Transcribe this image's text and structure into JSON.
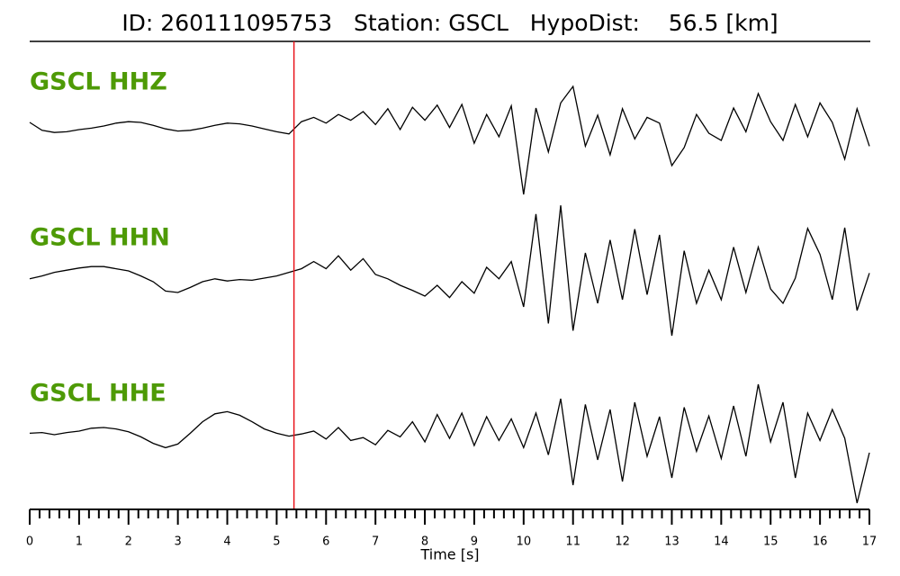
{
  "chart_data": {
    "type": "seismogram",
    "title": "ID: 260111095753   Station: GSCL   HypoDist:    56.5 [km]",
    "xlabel": "Time [s]",
    "xlim": [
      0,
      17
    ],
    "xticks": [
      0,
      1,
      2,
      3,
      4,
      5,
      6,
      7,
      8,
      9,
      10,
      11,
      12,
      13,
      14,
      15,
      16,
      17
    ],
    "minor_ticks_per_major": 5,
    "p_arrival": 5.35,
    "p_arrival_color": "#e8141c",
    "label_color": "#4e9a06",
    "x": [
      0,
      0.25,
      0.5,
      0.75,
      1,
      1.25,
      1.5,
      1.75,
      2,
      2.25,
      2.5,
      2.75,
      3,
      3.25,
      3.5,
      3.75,
      4,
      4.25,
      4.5,
      4.75,
      5,
      5.25,
      5.5,
      5.75,
      6,
      6.25,
      6.5,
      6.75,
      7,
      7.25,
      7.5,
      7.75,
      8,
      8.25,
      8.5,
      8.75,
      9,
      9.25,
      9.5,
      9.75,
      10,
      10.25,
      10.5,
      10.75,
      11,
      11.25,
      11.5,
      11.75,
      12,
      12.25,
      12.5,
      12.75,
      13,
      13.25,
      13.5,
      13.75,
      14,
      14.25,
      14.5,
      14.75,
      15,
      15.25,
      15.5,
      15.75,
      16,
      16.25,
      16.5,
      16.75,
      17
    ],
    "series": [
      {
        "name": "GSCL HHZ",
        "color": "#000000",
        "values": [
          0.5,
          -0.6,
          -0.9,
          -0.8,
          -0.5,
          -0.3,
          0,
          0.4,
          0.6,
          0.5,
          0.1,
          -0.4,
          -0.7,
          -0.6,
          -0.3,
          0.1,
          0.4,
          0.3,
          0,
          -0.4,
          -0.8,
          -1.1,
          0.6,
          1.2,
          0.4,
          1.6,
          0.8,
          2.0,
          0.2,
          2.4,
          -0.5,
          2.6,
          0.8,
          2.9,
          -0.2,
          3.0,
          -2.4,
          1.6,
          -1.5,
          2.8,
          -9.5,
          2.5,
          -3.6,
          3.2,
          5.5,
          -2.8,
          1.5,
          -4.0,
          2.4,
          -1.8,
          1.2,
          0.4,
          -5.5,
          -3.0,
          1.6,
          -1.0,
          -2.0,
          2.5,
          -0.8,
          4.5,
          0.6,
          -2.0,
          3.0,
          -1.5,
          3.2,
          0.5,
          -4.6,
          2.4,
          -2.8
        ]
      },
      {
        "name": "GSCL HHN",
        "color": "#000000",
        "values": [
          -0.6,
          -0.2,
          0.3,
          0.6,
          0.9,
          1.1,
          1.1,
          0.8,
          0.5,
          -0.2,
          -1.0,
          -2.3,
          -2.5,
          -1.8,
          -1.0,
          -0.6,
          -0.9,
          -0.7,
          -0.8,
          -0.5,
          -0.2,
          0.3,
          0.8,
          1.8,
          0.8,
          2.6,
          0.6,
          2.2,
          0,
          -0.6,
          -1.5,
          -2.2,
          -3.0,
          -1.5,
          -3.2,
          -1.0,
          -2.6,
          1.0,
          -0.6,
          1.8,
          -4.5,
          8.4,
          -6.8,
          9.6,
          -7.8,
          3.0,
          -4.0,
          4.8,
          -3.5,
          6.3,
          -2.8,
          5.5,
          -8.5,
          3.3,
          -4.0,
          0.6,
          -3.5,
          3.8,
          -2.5,
          3.8,
          -2.0,
          -4.0,
          -0.5,
          6.4,
          2.8,
          -3.5,
          6.5,
          -5.0,
          0.2
        ]
      },
      {
        "name": "GSCL HHE",
        "color": "#000000",
        "values": [
          0.2,
          0.3,
          0,
          0.3,
          0.5,
          0.9,
          1.0,
          0.8,
          0.4,
          -0.3,
          -1.2,
          -1.8,
          -1.3,
          0.2,
          1.8,
          2.9,
          3.2,
          2.7,
          1.8,
          0.8,
          0.2,
          -0.2,
          0.1,
          0.5,
          -0.6,
          1.0,
          -0.8,
          -0.4,
          -1.4,
          0.6,
          -0.3,
          1.8,
          -1.0,
          2.8,
          -0.5,
          3.0,
          -1.5,
          2.5,
          -0.8,
          2.2,
          -1.8,
          3.0,
          -2.8,
          5.0,
          -7.0,
          4.2,
          -3.5,
          3.5,
          -6.5,
          4.5,
          -3.0,
          2.5,
          -6.0,
          3.8,
          -2.3,
          2.6,
          -3.3,
          4.0,
          -3.0,
          7.0,
          -1.0,
          4.5,
          -6.0,
          3.0,
          -0.8,
          3.5,
          -0.5,
          -9.5,
          -2.5
        ]
      }
    ]
  }
}
